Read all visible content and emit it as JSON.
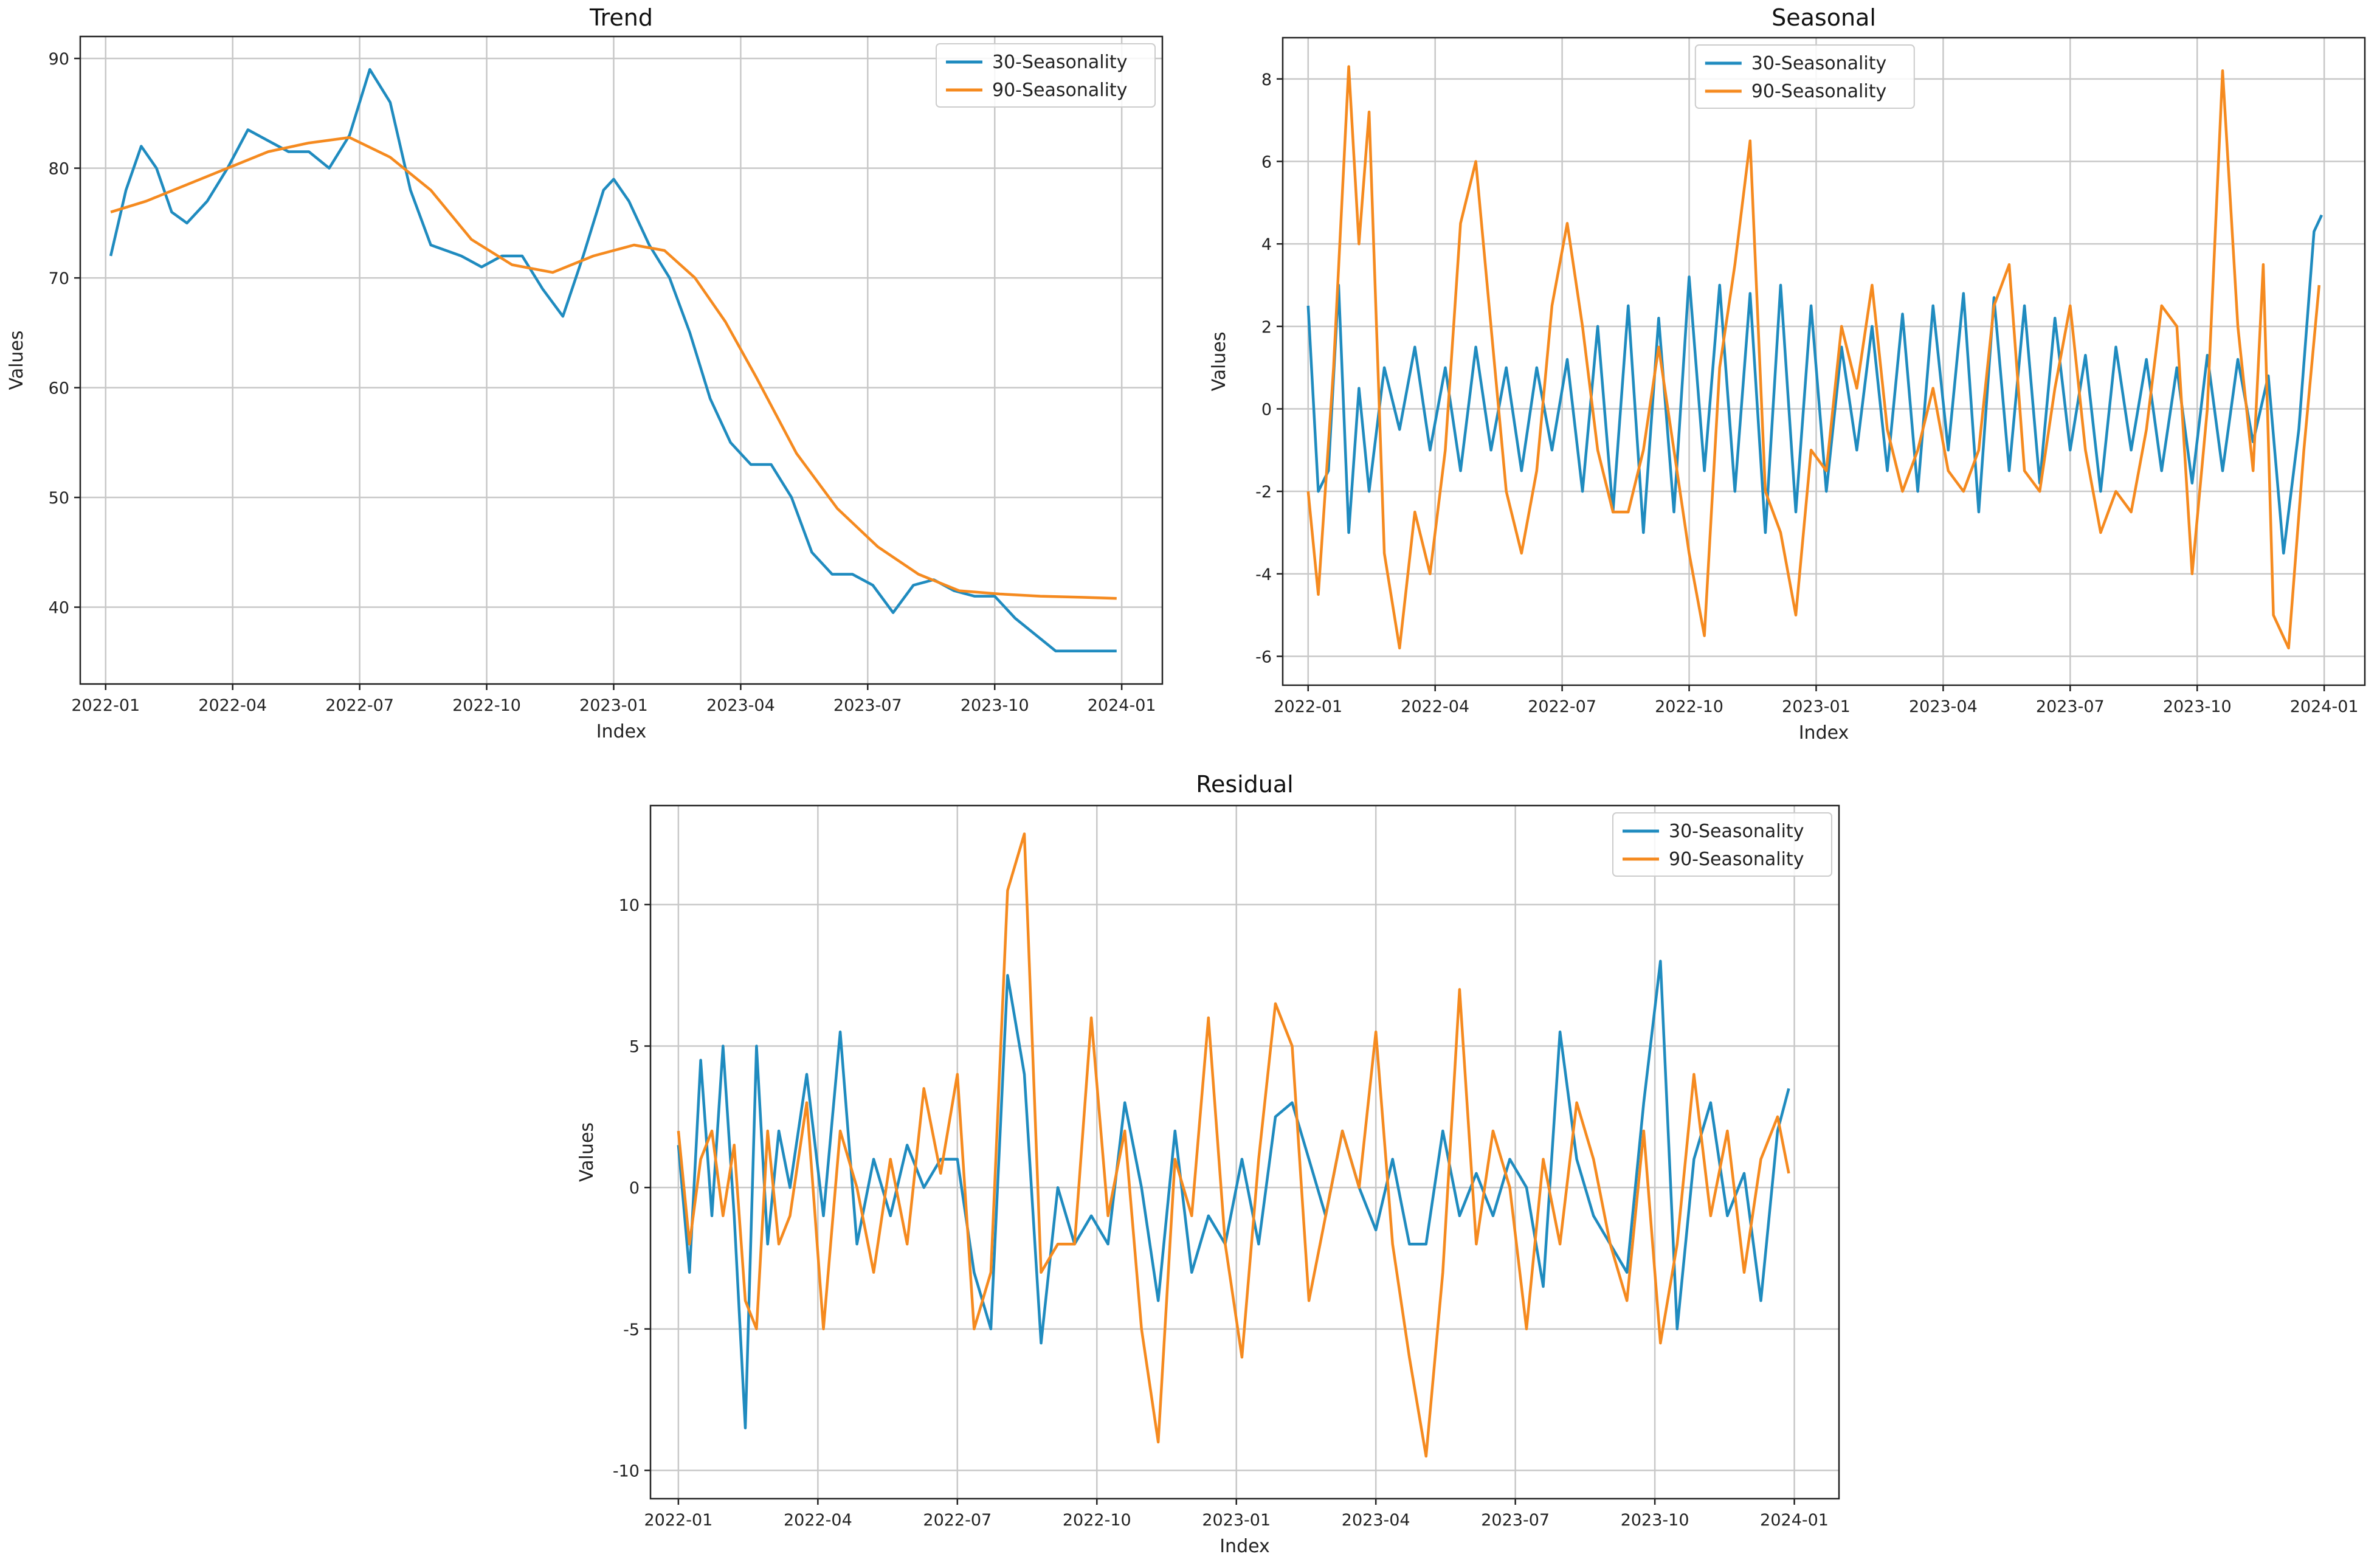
{
  "colors": {
    "series30": "#1f8bbf",
    "series90": "#f58a1f"
  },
  "chart_data": [
    {
      "id": "trend",
      "type": "line",
      "title": "Trend",
      "xlabel": "Index",
      "ylabel": "Values",
      "xlim": [
        2021.95,
        2024.08
      ],
      "ylim": [
        33,
        92
      ],
      "xticks": [
        {
          "v": 2022.0,
          "label": "2022-01"
        },
        {
          "v": 2022.25,
          "label": "2022-04"
        },
        {
          "v": 2022.5,
          "label": "2022-07"
        },
        {
          "v": 2022.75,
          "label": "2022-10"
        },
        {
          "v": 2023.0,
          "label": "2023-01"
        },
        {
          "v": 2023.25,
          "label": "2023-04"
        },
        {
          "v": 2023.5,
          "label": "2023-07"
        },
        {
          "v": 2023.75,
          "label": "2023-10"
        },
        {
          "v": 2024.0,
          "label": "2024-01"
        }
      ],
      "yticks": [
        40,
        50,
        60,
        70,
        80,
        90
      ],
      "legend": "upper right",
      "series": [
        {
          "name": "30-Seasonality",
          "x": [
            2022.01,
            2022.04,
            2022.07,
            2022.1,
            2022.13,
            2022.16,
            2022.2,
            2022.24,
            2022.28,
            2022.32,
            2022.36,
            2022.4,
            2022.44,
            2022.48,
            2022.52,
            2022.56,
            2022.6,
            2022.64,
            2022.67,
            2022.7,
            2022.74,
            2022.78,
            2022.82,
            2022.86,
            2022.9,
            2022.94,
            2022.98,
            2023.0,
            2023.03,
            2023.07,
            2023.11,
            2023.15,
            2023.19,
            2023.23,
            2023.27,
            2023.31,
            2023.35,
            2023.39,
            2023.43,
            2023.47,
            2023.51,
            2023.55,
            2023.59,
            2023.63,
            2023.67,
            2023.71,
            2023.75,
            2023.79,
            2023.83,
            2023.87,
            2023.91,
            2023.95,
            2023.99
          ],
          "y": [
            72,
            78,
            82,
            80,
            76,
            75,
            77,
            80,
            83.5,
            82.5,
            81.5,
            81.5,
            80,
            83,
            89,
            86,
            78,
            73,
            72.5,
            72,
            71,
            72,
            72,
            69,
            66.5,
            72,
            78,
            79,
            77,
            73,
            70,
            65,
            59,
            55,
            53,
            53,
            50,
            45,
            43,
            43,
            42,
            39.5,
            42,
            42.5,
            41.5,
            41,
            41,
            39,
            37.5,
            36,
            36,
            36,
            36
          ]
        },
        {
          "name": "90-Seasonality",
          "x": [
            2022.01,
            2022.08,
            2022.16,
            2022.24,
            2022.32,
            2022.4,
            2022.48,
            2022.56,
            2022.64,
            2022.72,
            2022.8,
            2022.88,
            2022.96,
            2023.04,
            2023.1,
            2023.16,
            2023.22,
            2023.28,
            2023.36,
            2023.44,
            2023.52,
            2023.6,
            2023.68,
            2023.76,
            2023.84,
            2023.92,
            2023.99
          ],
          "y": [
            76,
            77,
            78.5,
            80,
            81.5,
            82.3,
            82.8,
            81,
            78,
            73.5,
            71.2,
            70.5,
            72,
            73,
            72.5,
            70,
            66,
            61,
            54,
            49,
            45.5,
            43,
            41.5,
            41.2,
            41,
            40.9,
            40.8
          ]
        }
      ]
    },
    {
      "id": "seasonal",
      "type": "line",
      "title": "Seasonal",
      "xlabel": "Index",
      "ylabel": "Values",
      "xlim": [
        2021.95,
        2024.08
      ],
      "ylim": [
        -6.7,
        9.0
      ],
      "xticks": [
        {
          "v": 2022.0,
          "label": "2022-01"
        },
        {
          "v": 2022.25,
          "label": "2022-04"
        },
        {
          "v": 2022.5,
          "label": "2022-07"
        },
        {
          "v": 2022.75,
          "label": "2022-10"
        },
        {
          "v": 2023.0,
          "label": "2023-01"
        },
        {
          "v": 2023.25,
          "label": "2023-04"
        },
        {
          "v": 2023.5,
          "label": "2023-07"
        },
        {
          "v": 2023.75,
          "label": "2023-10"
        },
        {
          "v": 2024.0,
          "label": "2024-01"
        }
      ],
      "yticks": [
        -6,
        -4,
        -2,
        0,
        2,
        4,
        6,
        8
      ],
      "legend": "upper center",
      "series": [
        {
          "name": "30-Seasonality",
          "x": [
            2022.0,
            2022.02,
            2022.04,
            2022.06,
            2022.08,
            2022.1,
            2022.12,
            2022.15,
            2022.18,
            2022.21,
            2022.24,
            2022.27,
            2022.3,
            2022.33,
            2022.36,
            2022.39,
            2022.42,
            2022.45,
            2022.48,
            2022.51,
            2022.54,
            2022.57,
            2022.6,
            2022.63,
            2022.66,
            2022.69,
            2022.72,
            2022.75,
            2022.78,
            2022.81,
            2022.84,
            2022.87,
            2022.9,
            2022.93,
            2022.96,
            2022.99,
            2023.02,
            2023.05,
            2023.08,
            2023.11,
            2023.14,
            2023.17,
            2023.2,
            2023.23,
            2023.26,
            2023.29,
            2023.32,
            2023.35,
            2023.38,
            2023.41,
            2023.44,
            2023.47,
            2023.5,
            2023.53,
            2023.56,
            2023.59,
            2023.62,
            2023.65,
            2023.68,
            2023.71,
            2023.74,
            2023.77,
            2023.8,
            2023.83,
            2023.86,
            2023.89,
            2023.92,
            2023.95,
            2023.98,
            2023.995
          ],
          "y": [
            2.5,
            -2,
            -1.5,
            3,
            -3,
            0.5,
            -2,
            1,
            -0.5,
            1.5,
            -1,
            1,
            -1.5,
            1.5,
            -1,
            1,
            -1.5,
            1,
            -1,
            1.2,
            -2,
            2,
            -2.5,
            2.5,
            -3,
            2.2,
            -2.5,
            3.2,
            -1.5,
            3,
            -2,
            2.8,
            -3,
            3,
            -2.5,
            2.5,
            -2,
            1.5,
            -1,
            2,
            -1.5,
            2.3,
            -2,
            2.5,
            -1,
            2.8,
            -2.5,
            2.7,
            -1.5,
            2.5,
            -1.8,
            2.2,
            -1,
            1.3,
            -2,
            1.5,
            -1,
            1.2,
            -1.5,
            1,
            -1.8,
            1.3,
            -1.5,
            1.2,
            -0.8,
            0.8,
            -3.5,
            -0.5,
            4.3,
            4.7
          ]
        },
        {
          "name": "90-Seasonality",
          "x": [
            2022.0,
            2022.02,
            2022.05,
            2022.08,
            2022.1,
            2022.12,
            2022.15,
            2022.18,
            2022.21,
            2022.24,
            2022.27,
            2022.3,
            2022.33,
            2022.36,
            2022.39,
            2022.42,
            2022.45,
            2022.48,
            2022.51,
            2022.54,
            2022.57,
            2022.6,
            2022.63,
            2022.66,
            2022.69,
            2022.72,
            2022.75,
            2022.78,
            2022.81,
            2022.84,
            2022.87,
            2022.9,
            2022.93,
            2022.96,
            2022.99,
            2023.02,
            2023.05,
            2023.08,
            2023.11,
            2023.14,
            2023.17,
            2023.2,
            2023.23,
            2023.26,
            2023.29,
            2023.32,
            2023.35,
            2023.38,
            2023.41,
            2023.44,
            2023.47,
            2023.5,
            2023.53,
            2023.56,
            2023.59,
            2023.62,
            2023.65,
            2023.68,
            2023.71,
            2023.74,
            2023.77,
            2023.8,
            2023.83,
            2023.86,
            2023.88,
            2023.9,
            2023.93,
            2023.96,
            2023.99
          ],
          "y": [
            -2,
            -4.5,
            1,
            8.3,
            4,
            7.2,
            -3.5,
            -5.8,
            -2.5,
            -4,
            -1,
            4.5,
            6,
            2,
            -2,
            -3.5,
            -1.5,
            2.5,
            4.5,
            2,
            -1,
            -2.5,
            -2.5,
            -1,
            1.5,
            -1,
            -3.5,
            -5.5,
            1,
            3.5,
            6.5,
            -2,
            -3,
            -5,
            -1,
            -1.5,
            2,
            0.5,
            3,
            -0.5,
            -2,
            -1,
            0.5,
            -1.5,
            -2,
            -1,
            2.5,
            3.5,
            -1.5,
            -2,
            0.5,
            2.5,
            -1,
            -3,
            -2,
            -2.5,
            -0.5,
            2.5,
            2,
            -4,
            0,
            8.2,
            2,
            -1.5,
            3.5,
            -5,
            -5.8,
            -1,
            3
          ]
        }
      ]
    },
    {
      "id": "residual",
      "type": "line",
      "title": "Residual",
      "xlabel": "Index",
      "ylabel": "Values",
      "xlim": [
        2021.95,
        2024.08
      ],
      "ylim": [
        -11,
        13.5
      ],
      "xticks": [
        {
          "v": 2022.0,
          "label": "2022-01"
        },
        {
          "v": 2022.25,
          "label": "2022-04"
        },
        {
          "v": 2022.5,
          "label": "2022-07"
        },
        {
          "v": 2022.75,
          "label": "2022-10"
        },
        {
          "v": 2023.0,
          "label": "2023-01"
        },
        {
          "v": 2023.25,
          "label": "2023-04"
        },
        {
          "v": 2023.5,
          "label": "2023-07"
        },
        {
          "v": 2023.75,
          "label": "2023-10"
        },
        {
          "v": 2024.0,
          "label": "2024-01"
        }
      ],
      "yticks": [
        -10,
        -5,
        0,
        5,
        10
      ],
      "legend": "upper right",
      "series": [
        {
          "name": "30-Seasonality",
          "x": [
            2022.0,
            2022.02,
            2022.04,
            2022.06,
            2022.08,
            2022.1,
            2022.12,
            2022.14,
            2022.16,
            2022.18,
            2022.2,
            2022.23,
            2022.26,
            2022.29,
            2022.32,
            2022.35,
            2022.38,
            2022.41,
            2022.44,
            2022.47,
            2022.5,
            2022.53,
            2022.56,
            2022.59,
            2022.62,
            2022.65,
            2022.68,
            2022.71,
            2022.74,
            2022.77,
            2022.8,
            2022.83,
            2022.86,
            2022.89,
            2022.92,
            2022.95,
            2022.98,
            2023.01,
            2023.04,
            2023.07,
            2023.1,
            2023.13,
            2023.16,
            2023.19,
            2023.22,
            2023.25,
            2023.28,
            2023.31,
            2023.34,
            2023.37,
            2023.4,
            2023.43,
            2023.46,
            2023.49,
            2023.52,
            2023.55,
            2023.58,
            2023.61,
            2023.64,
            2023.67,
            2023.7,
            2023.73,
            2023.76,
            2023.79,
            2023.82,
            2023.85,
            2023.88,
            2023.91,
            2023.94,
            2023.97,
            2023.99
          ],
          "y": [
            1.5,
            -3,
            4.5,
            -1,
            5,
            -1,
            -8.5,
            5,
            -2,
            2,
            0,
            4,
            -1,
            5.5,
            -2,
            1,
            -1,
            1.5,
            0,
            1,
            1,
            -3,
            -5,
            7.5,
            4,
            -5.5,
            0,
            -2,
            -1,
            -2,
            3,
            0,
            -4,
            2,
            -3,
            -1,
            -2,
            1,
            -2,
            2.5,
            3,
            1,
            -1,
            2,
            0,
            -1.5,
            1,
            -2,
            -2,
            2,
            -1,
            0.5,
            -1,
            1,
            0,
            -3.5,
            5.5,
            1,
            -1,
            -2,
            -3,
            3,
            8,
            -5,
            1,
            3,
            -1,
            0.5,
            -4,
            2,
            3.5
          ]
        },
        {
          "name": "90-Seasonality",
          "x": [
            2022.0,
            2022.02,
            2022.04,
            2022.06,
            2022.08,
            2022.1,
            2022.12,
            2022.14,
            2022.16,
            2022.18,
            2022.2,
            2022.23,
            2022.26,
            2022.29,
            2022.32,
            2022.35,
            2022.38,
            2022.41,
            2022.44,
            2022.47,
            2022.5,
            2022.53,
            2022.56,
            2022.59,
            2022.62,
            2022.65,
            2022.68,
            2022.71,
            2022.74,
            2022.77,
            2022.8,
            2022.83,
            2022.86,
            2022.89,
            2022.92,
            2022.95,
            2022.98,
            2023.01,
            2023.04,
            2023.07,
            2023.1,
            2023.13,
            2023.16,
            2023.19,
            2023.22,
            2023.25,
            2023.28,
            2023.31,
            2023.34,
            2023.37,
            2023.4,
            2023.43,
            2023.46,
            2023.49,
            2023.52,
            2023.55,
            2023.58,
            2023.61,
            2023.64,
            2023.67,
            2023.7,
            2023.73,
            2023.76,
            2023.79,
            2023.82,
            2023.85,
            2023.88,
            2023.91,
            2023.94,
            2023.97,
            2023.99
          ],
          "y": [
            2,
            -2,
            1,
            2,
            -1,
            1.5,
            -4,
            -5,
            2,
            -2,
            -1,
            3,
            -5,
            2,
            0,
            -3,
            1,
            -2,
            3.5,
            0.5,
            4,
            -5,
            -3,
            10.5,
            12.5,
            -3,
            -2,
            -2,
            6,
            -1,
            2,
            -5,
            -9,
            1,
            -1,
            6,
            -2,
            -6,
            1,
            6.5,
            5,
            -4,
            -1,
            2,
            0,
            5.5,
            -2,
            -6,
            -9.5,
            -3,
            7,
            -2,
            2,
            0,
            -5,
            1,
            -2,
            3,
            1,
            -2,
            -4,
            2,
            -5.5,
            -2,
            4,
            -1,
            2,
            -3,
            1,
            2.5,
            0.5
          ]
        }
      ]
    }
  ]
}
